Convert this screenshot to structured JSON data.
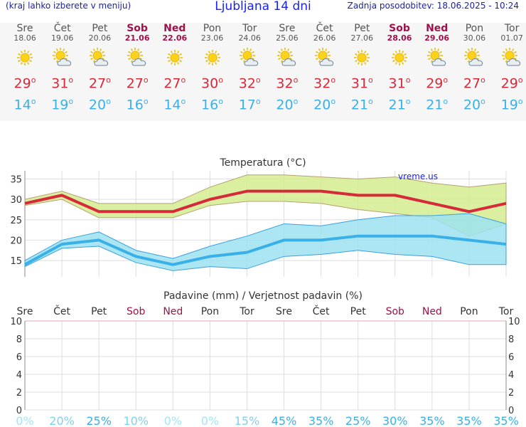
{
  "header": {
    "hint": "(kraj lahko izberete v meniju)",
    "title": "Ljubljana 14 dni",
    "updated": "Zadnja posodobitev: 18.06.2025 - 10:24"
  },
  "days": [
    {
      "name": "Sre",
      "date": "18.06",
      "weekend": false,
      "icon": "sun-icon",
      "tmax": "29",
      "tmin": "14"
    },
    {
      "name": "Čet",
      "date": "19.06",
      "weekend": false,
      "icon": "sun-cloud-icon",
      "tmax": "31",
      "tmin": "19"
    },
    {
      "name": "Pet",
      "date": "20.06",
      "weekend": false,
      "icon": "sun-cloud-icon",
      "tmax": "27",
      "tmin": "20"
    },
    {
      "name": "Sob",
      "date": "21.06",
      "weekend": true,
      "icon": "sun-cloud-icon",
      "tmax": "27",
      "tmin": "16"
    },
    {
      "name": "Ned",
      "date": "22.06",
      "weekend": true,
      "icon": "sun-icon",
      "tmax": "27",
      "tmin": "14"
    },
    {
      "name": "Pon",
      "date": "23.06",
      "weekend": false,
      "icon": "sun-icon",
      "tmax": "30",
      "tmin": "16"
    },
    {
      "name": "Tor",
      "date": "24.06",
      "weekend": false,
      "icon": "sun-cloud-icon",
      "tmax": "32",
      "tmin": "17"
    },
    {
      "name": "Sre",
      "date": "25.06",
      "weekend": false,
      "icon": "sun-cloud-icon",
      "tmax": "32",
      "tmin": "20"
    },
    {
      "name": "Čet",
      "date": "26.06",
      "weekend": false,
      "icon": "sun-cloud-icon",
      "tmax": "32",
      "tmin": "20"
    },
    {
      "name": "Pet",
      "date": "27.06",
      "weekend": false,
      "icon": "sun-icon",
      "tmax": "31",
      "tmin": "21"
    },
    {
      "name": "Sob",
      "date": "28.06",
      "weekend": true,
      "icon": "sun-icon",
      "tmax": "31",
      "tmin": "21"
    },
    {
      "name": "Ned",
      "date": "29.06",
      "weekend": true,
      "icon": "sun-cloud-icon",
      "tmax": "29",
      "tmin": "21"
    },
    {
      "name": "Pon",
      "date": "30.06",
      "weekend": false,
      "icon": "sun-cloud-icon",
      "tmax": "27",
      "tmin": "20"
    },
    {
      "name": "Tor",
      "date": "01.07",
      "weekend": false,
      "icon": "sun-cloud-icon",
      "tmax": "29",
      "tmin": "19"
    }
  ],
  "chart_data": [
    {
      "type": "area",
      "title": "Temperatura (°C)",
      "watermark": "vreme.us",
      "ylim": [
        11,
        37
      ],
      "yticks": [
        15,
        20,
        25,
        30,
        35
      ],
      "grid": true,
      "series": [
        {
          "role": "max",
          "color": "#d62a3a",
          "values": [
            29,
            31,
            27,
            27,
            27,
            30,
            32,
            32,
            32,
            31,
            31,
            29,
            27,
            29
          ]
        },
        {
          "role": "max-upper",
          "color": "#cfe98a",
          "values": [
            30,
            32,
            29,
            29,
            29,
            33,
            36,
            36,
            35.5,
            35,
            35.5,
            34,
            33,
            34
          ]
        },
        {
          "role": "max-lower",
          "color": "#cfe98a",
          "values": [
            28.5,
            30,
            25.5,
            25.5,
            25.5,
            28.5,
            29.5,
            29.5,
            29,
            27.5,
            26.5,
            25.5,
            21,
            24
          ]
        },
        {
          "role": "min",
          "color": "#3ab0e8",
          "values": [
            14,
            19,
            20,
            16,
            14,
            16,
            17,
            20,
            20,
            21,
            21,
            21,
            20,
            19
          ]
        },
        {
          "role": "min-upper",
          "color": "#a6e4f2",
          "values": [
            15,
            20,
            22,
            17.5,
            15.5,
            18.5,
            21,
            24,
            23.5,
            25,
            26,
            26,
            26.5,
            24
          ]
        },
        {
          "role": "min-lower",
          "color": "#a6e4f2",
          "values": [
            13.5,
            18,
            18.5,
            14.5,
            12.5,
            13.5,
            13,
            16,
            16.5,
            17.5,
            16.5,
            16,
            14,
            14
          ]
        }
      ]
    },
    {
      "type": "bar",
      "title": "Padavine (mm) / Verjetnost padavin (%)",
      "categories": [
        "Sre",
        "Čet",
        "Pet",
        "Sob",
        "Ned",
        "Pon",
        "Tor",
        "Sre",
        "Čet",
        "Pet",
        "Sob",
        "Ned",
        "Pon",
        "Tor"
      ],
      "weekend": [
        false,
        false,
        false,
        true,
        true,
        false,
        false,
        false,
        false,
        false,
        true,
        true,
        false,
        false
      ],
      "ylim": [
        0,
        10
      ],
      "yticks": [
        0,
        2,
        4,
        6,
        8,
        10
      ],
      "values": [
        0,
        0,
        0,
        0,
        0,
        0,
        0,
        0,
        0,
        0,
        0,
        0,
        0,
        0
      ],
      "probability": [
        "0%",
        "20%",
        "25%",
        "10%",
        "0%",
        "0%",
        "15%",
        "45%",
        "35%",
        "25%",
        "30%",
        "35%",
        "35%",
        "35%"
      ]
    }
  ],
  "colors": {
    "accent_blue": "#1a22ee",
    "weekend": "#a0104a",
    "max_temp": "#d62a3a",
    "min_temp": "#3ab0e8"
  }
}
